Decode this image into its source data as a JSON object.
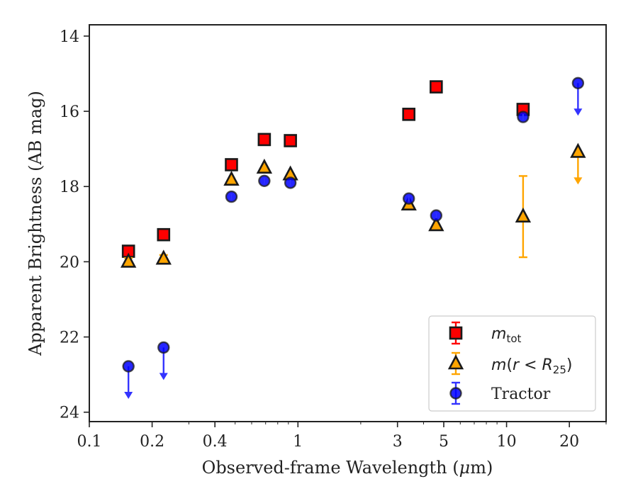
{
  "chart_data": {
    "type": "scatter",
    "xlabel": "Observed-frame Wavelength (μm)",
    "xlabel_parts": {
      "before": "Observed-frame Wavelength (",
      "mu": "μ",
      "after": "m)"
    },
    "ylabel": "Apparent Brightness (AB mag)",
    "x_scale": "log",
    "xlim": [
      0.1,
      30
    ],
    "ylim": [
      24.25,
      13.7
    ],
    "y_inverted": true,
    "x_ticks": [
      0.1,
      0.2,
      0.4,
      1,
      3,
      5,
      10,
      20
    ],
    "x_tick_labels": [
      "0.1",
      "0.2",
      "0.4",
      "1",
      "3",
      "5",
      "10",
      "20"
    ],
    "y_ticks": [
      14,
      16,
      18,
      20,
      22,
      24
    ],
    "y_tick_labels": [
      "14",
      "16",
      "18",
      "20",
      "22",
      "24"
    ],
    "legend_position": "lower-right",
    "series": [
      {
        "name": "m_tot",
        "legend_parts": {
          "main": "m",
          "sub": "tot"
        },
        "marker": "square",
        "color": "#ff0000",
        "points": [
          {
            "x": 0.154,
            "y": 19.72,
            "yerr": 0.05
          },
          {
            "x": 0.227,
            "y": 19.28,
            "yerr": 0.05
          },
          {
            "x": 0.48,
            "y": 17.42,
            "yerr": 0.03
          },
          {
            "x": 0.69,
            "y": 16.75,
            "yerr": 0.03
          },
          {
            "x": 0.92,
            "y": 16.78,
            "yerr": 0.03
          },
          {
            "x": 3.4,
            "y": 16.08,
            "yerr": 0.03
          },
          {
            "x": 4.6,
            "y": 15.35,
            "yerr": 0.03
          },
          {
            "x": 12.0,
            "y": 15.95,
            "yerr": 0.05
          }
        ]
      },
      {
        "name": "m(r < R25)",
        "legend_parts": {
          "main": "m",
          "paren_open": "(",
          "r": "r",
          "lt": " < ",
          "R": "R",
          "sub": "25",
          "paren_close": ")"
        },
        "marker": "triangle",
        "color": "#ffa500",
        "points": [
          {
            "x": 0.154,
            "y": 20.0,
            "yerr": 0.1
          },
          {
            "x": 0.227,
            "y": 19.92,
            "yerr": 0.1
          },
          {
            "x": 0.48,
            "y": 17.82,
            "yerr": 0.04
          },
          {
            "x": 0.69,
            "y": 17.5,
            "yerr": 0.04
          },
          {
            "x": 0.92,
            "y": 17.68,
            "yerr": 0.04
          },
          {
            "x": 3.4,
            "y": 18.48,
            "yerr": 0.05
          },
          {
            "x": 4.6,
            "y": 19.03,
            "yerr": 0.05
          },
          {
            "x": 12.0,
            "y": 18.8,
            "yerr": 1.08
          },
          {
            "x": 22.0,
            "y": 17.08,
            "upper_limit": true
          }
        ]
      },
      {
        "name": "Tractor",
        "marker": "circle",
        "color": "#0000ff",
        "points": [
          {
            "x": 0.154,
            "y": 22.78,
            "upper_limit": true
          },
          {
            "x": 0.227,
            "y": 22.28,
            "upper_limit": true
          },
          {
            "x": 0.48,
            "y": 18.27,
            "yerr": 0.05
          },
          {
            "x": 0.69,
            "y": 17.85,
            "yerr": 0.05
          },
          {
            "x": 0.92,
            "y": 17.9,
            "yerr": 0.05
          },
          {
            "x": 3.4,
            "y": 18.32,
            "yerr": 0.05
          },
          {
            "x": 4.6,
            "y": 18.77,
            "yerr": 0.05
          },
          {
            "x": 12.0,
            "y": 16.15,
            "yerr": 0.05
          },
          {
            "x": 22.0,
            "y": 15.25,
            "upper_limit": true
          }
        ]
      }
    ]
  }
}
